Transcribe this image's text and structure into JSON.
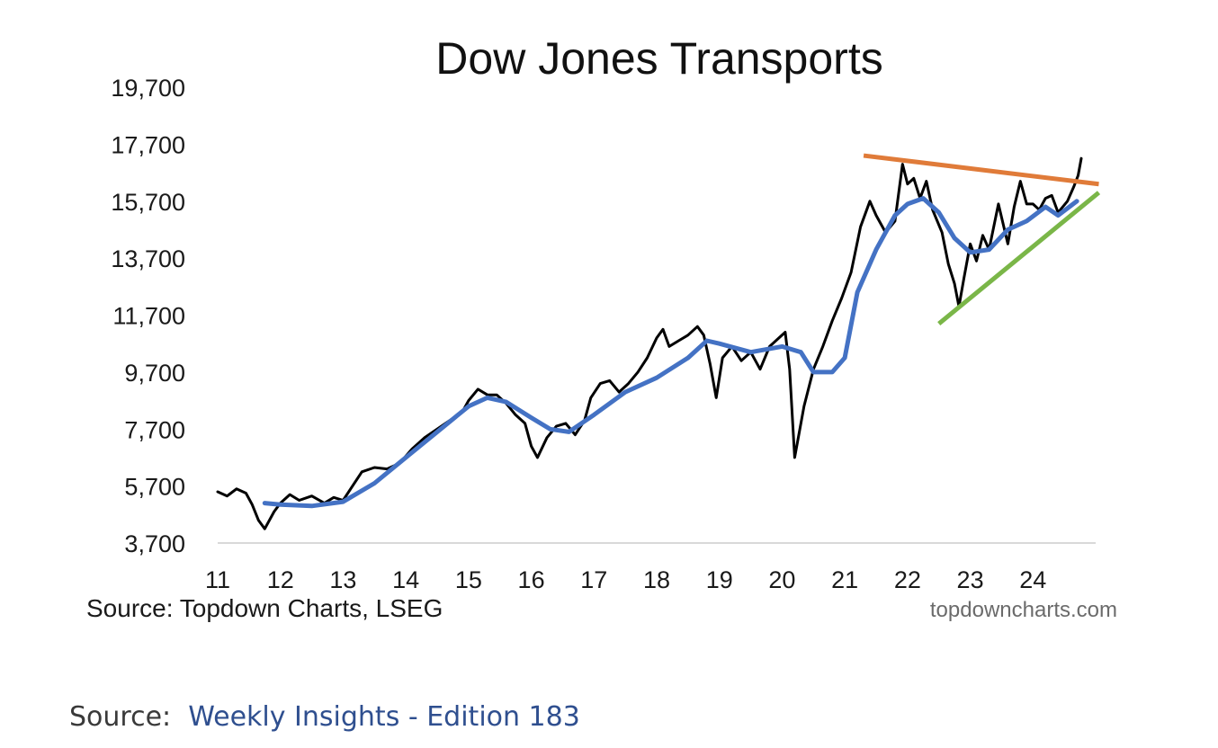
{
  "chart_data": {
    "type": "line",
    "title": "Dow Jones Transports",
    "xlabel": "",
    "ylabel": "",
    "x_ticks": [
      "11",
      "12",
      "13",
      "14",
      "15",
      "16",
      "17",
      "18",
      "19",
      "20",
      "21",
      "22",
      "23",
      "24"
    ],
    "y_ticks": [
      "19,700",
      "17,700",
      "15,700",
      "13,700",
      "11,700",
      "9,700",
      "7,700",
      "5,700",
      "3,700"
    ],
    "ylim": [
      3700,
      19700
    ],
    "xlim": [
      2011.0,
      2025.0
    ],
    "grid": false,
    "series": [
      {
        "color": "#000000",
        "points": [
          [
            2011.0,
            5500
          ],
          [
            2011.15,
            5350
          ],
          [
            2011.3,
            5600
          ],
          [
            2011.45,
            5450
          ],
          [
            2011.55,
            5050
          ],
          [
            2011.65,
            4500
          ],
          [
            2011.75,
            4200
          ],
          [
            2011.9,
            4800
          ],
          [
            2012.0,
            5100
          ],
          [
            2012.15,
            5400
          ],
          [
            2012.3,
            5200
          ],
          [
            2012.5,
            5350
          ],
          [
            2012.7,
            5100
          ],
          [
            2012.85,
            5300
          ],
          [
            2013.0,
            5200
          ],
          [
            2013.15,
            5700
          ],
          [
            2013.3,
            6200
          ],
          [
            2013.5,
            6350
          ],
          [
            2013.7,
            6300
          ],
          [
            2013.9,
            6500
          ],
          [
            2014.1,
            7000
          ],
          [
            2014.3,
            7400
          ],
          [
            2014.5,
            7700
          ],
          [
            2014.7,
            8000
          ],
          [
            2014.9,
            8300
          ],
          [
            2015.0,
            8700
          ],
          [
            2015.15,
            9100
          ],
          [
            2015.3,
            8900
          ],
          [
            2015.45,
            8900
          ],
          [
            2015.6,
            8600
          ],
          [
            2015.75,
            8200
          ],
          [
            2015.9,
            7900
          ],
          [
            2016.0,
            7100
          ],
          [
            2016.1,
            6700
          ],
          [
            2016.25,
            7400
          ],
          [
            2016.4,
            7800
          ],
          [
            2016.55,
            7900
          ],
          [
            2016.7,
            7500
          ],
          [
            2016.85,
            8000
          ],
          [
            2016.95,
            8800
          ],
          [
            2017.1,
            9300
          ],
          [
            2017.25,
            9400
          ],
          [
            2017.4,
            9000
          ],
          [
            2017.55,
            9300
          ],
          [
            2017.7,
            9700
          ],
          [
            2017.85,
            10200
          ],
          [
            2018.0,
            10900
          ],
          [
            2018.1,
            11200
          ],
          [
            2018.2,
            10600
          ],
          [
            2018.35,
            10800
          ],
          [
            2018.5,
            11000
          ],
          [
            2018.65,
            11300
          ],
          [
            2018.75,
            11000
          ],
          [
            2018.85,
            10000
          ],
          [
            2018.95,
            8800
          ],
          [
            2019.05,
            10200
          ],
          [
            2019.2,
            10600
          ],
          [
            2019.35,
            10100
          ],
          [
            2019.5,
            10400
          ],
          [
            2019.65,
            9800
          ],
          [
            2019.8,
            10600
          ],
          [
            2019.95,
            10900
          ],
          [
            2020.05,
            11100
          ],
          [
            2020.12,
            9800
          ],
          [
            2020.2,
            6700
          ],
          [
            2020.35,
            8500
          ],
          [
            2020.5,
            9800
          ],
          [
            2020.65,
            10600
          ],
          [
            2020.8,
            11500
          ],
          [
            2020.95,
            12300
          ],
          [
            2021.1,
            13200
          ],
          [
            2021.25,
            14800
          ],
          [
            2021.4,
            15700
          ],
          [
            2021.5,
            15200
          ],
          [
            2021.65,
            14600
          ],
          [
            2021.8,
            15000
          ],
          [
            2021.92,
            17000
          ],
          [
            2022.0,
            16300
          ],
          [
            2022.1,
            16500
          ],
          [
            2022.2,
            15800
          ],
          [
            2022.3,
            16400
          ],
          [
            2022.4,
            15400
          ],
          [
            2022.55,
            14600
          ],
          [
            2022.65,
            13500
          ],
          [
            2022.75,
            12800
          ],
          [
            2022.82,
            12000
          ],
          [
            2022.9,
            13000
          ],
          [
            2023.0,
            14200
          ],
          [
            2023.1,
            13600
          ],
          [
            2023.2,
            14500
          ],
          [
            2023.3,
            14000
          ],
          [
            2023.45,
            15600
          ],
          [
            2023.6,
            14200
          ],
          [
            2023.7,
            15500
          ],
          [
            2023.8,
            16400
          ],
          [
            2023.9,
            15600
          ],
          [
            2024.0,
            15600
          ],
          [
            2024.1,
            15400
          ],
          [
            2024.2,
            15800
          ],
          [
            2024.3,
            15900
          ],
          [
            2024.4,
            15300
          ],
          [
            2024.55,
            15700
          ],
          [
            2024.65,
            16200
          ],
          [
            2024.72,
            16600
          ],
          [
            2024.77,
            17200
          ]
        ]
      },
      {
        "color": "#4472c4",
        "points": [
          [
            2011.75,
            5100
          ],
          [
            2012.0,
            5050
          ],
          [
            2012.5,
            5000
          ],
          [
            2013.0,
            5150
          ],
          [
            2013.5,
            5800
          ],
          [
            2014.0,
            6700
          ],
          [
            2014.5,
            7600
          ],
          [
            2015.0,
            8500
          ],
          [
            2015.3,
            8800
          ],
          [
            2015.6,
            8650
          ],
          [
            2016.0,
            8100
          ],
          [
            2016.3,
            7700
          ],
          [
            2016.6,
            7600
          ],
          [
            2017.0,
            8200
          ],
          [
            2017.5,
            9000
          ],
          [
            2018.0,
            9500
          ],
          [
            2018.5,
            10200
          ],
          [
            2018.8,
            10800
          ],
          [
            2019.0,
            10700
          ],
          [
            2019.5,
            10400
          ],
          [
            2020.0,
            10600
          ],
          [
            2020.3,
            10400
          ],
          [
            2020.5,
            9700
          ],
          [
            2020.8,
            9700
          ],
          [
            2021.0,
            10200
          ],
          [
            2021.2,
            12500
          ],
          [
            2021.5,
            14000
          ],
          [
            2021.8,
            15200
          ],
          [
            2022.0,
            15600
          ],
          [
            2022.25,
            15800
          ],
          [
            2022.5,
            15300
          ],
          [
            2022.75,
            14400
          ],
          [
            2023.0,
            13900
          ],
          [
            2023.3,
            14000
          ],
          [
            2023.6,
            14700
          ],
          [
            2023.9,
            15000
          ],
          [
            2024.2,
            15500
          ],
          [
            2024.4,
            15200
          ],
          [
            2024.7,
            15700
          ]
        ]
      }
    ],
    "trendlines": [
      {
        "color": "#e07b39",
        "from": [
          2021.3,
          17300
        ],
        "to": [
          2025.05,
          16300
        ]
      },
      {
        "color": "#7ab648",
        "from": [
          2022.5,
          11400
        ],
        "to": [
          2025.05,
          16000
        ]
      }
    ],
    "source_note": "Source: Topdown Charts, LSEG",
    "watermark": "topdowncharts.com"
  },
  "footer": {
    "prefix": "Source:",
    "link": "Weekly Insights - Edition 183"
  }
}
